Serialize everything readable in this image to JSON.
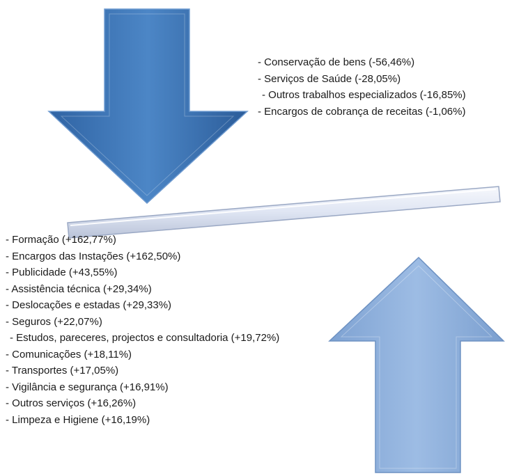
{
  "decreases": [
    "- Conservação de bens (-56,46%)",
    "- Serviços de Saúde (-28,05%)",
    "- Outros trabalhos especializados (-16,85%)",
    "- Encargos de cobrança de receitas (-1,06%)"
  ],
  "increases": [
    "- Formação (+162,77%)",
    "- Encargos das Instações (+162,50%)",
    "- Publicidade (+43,55%)",
    "- Assistência técnica (+29,34%)",
    "- Deslocações e estadas (+29,33%)",
    "- Seguros (+22,07%)",
    "- Estudos, pareceres, projectos e consultadoria (+19,72%)",
    "- Comunicações (+18,11%)",
    "- Transportes (+17,05%)",
    "- Vigilância e segurança (+16,91%)",
    "- Outros serviços (+16,26%)",
    "- Limpeza e Higiene (+16,19%)"
  ],
  "colors": {
    "down_arrow": "#3f78b8",
    "up_arrow": "#8eb0dc",
    "bar": "#dde4f4"
  },
  "icons": {
    "down_arrow": "arrow-down-icon",
    "up_arrow": "arrow-up-icon",
    "bar": "balance-bar"
  }
}
